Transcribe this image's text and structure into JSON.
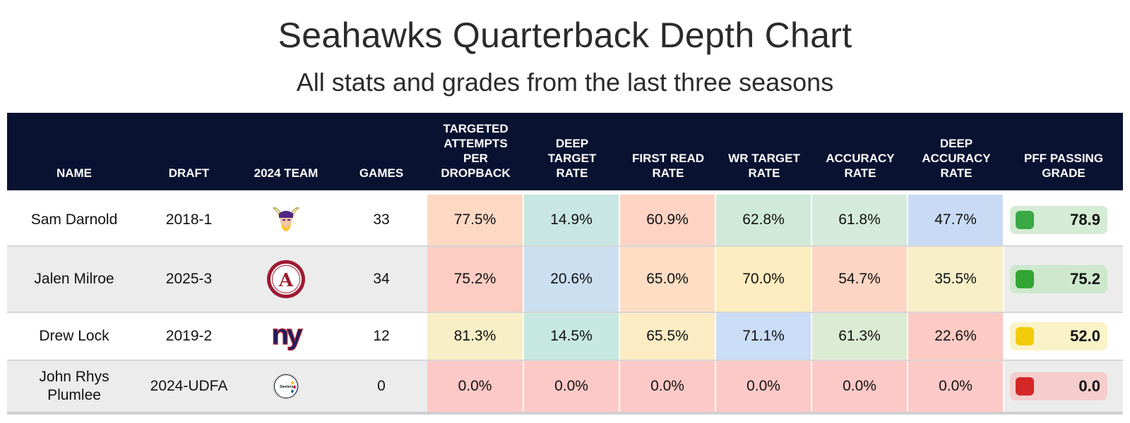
{
  "title": "Seahawks Quarterback Depth Chart",
  "subtitle": "All stats and grades from the last three seasons",
  "columns": {
    "name": "NAME",
    "draft": "DRAFT",
    "team": "2024 TEAM",
    "games": "GAMES",
    "tapd_1": "TARGETED",
    "tapd_2": "ATTEMPTS",
    "tapd_3": "PER",
    "tapd_4": "DROPBACK",
    "dtr_1": "DEEP",
    "dtr_2": "TARGET",
    "dtr_3": "RATE",
    "frr_1": "FIRST READ",
    "frr_2": "RATE",
    "wr_1": "WR TARGET",
    "wr_2": "RATE",
    "acc_1": "ACCURACY",
    "acc_2": "RATE",
    "dacc_1": "DEEP",
    "dacc_2": "ACCURACY",
    "dacc_3": "RATE",
    "pff_1": "PFF PASSING",
    "pff_2": "GRADE"
  },
  "chart_data": {
    "type": "table",
    "title": "Seahawks Quarterback Depth Chart",
    "subtitle": "All stats and grades from the last three seasons",
    "rows": [
      {
        "name_1": "Sam Darnold",
        "name_2": "",
        "draft": "2018-1",
        "team_logo": "minnesota-vikings-logo",
        "games": "33",
        "tapd": "77.5%",
        "dtr": "14.9%",
        "frr": "60.9%",
        "wr": "62.8%",
        "acc": "61.8%",
        "dacc": "47.7%",
        "pff": "78.9",
        "colors": [
          "#fdd9c4",
          "#c8e6e2",
          "#fdd3c4",
          "#cfead9",
          "#d5eadb",
          "#c9dbf4"
        ],
        "pff_bg": "#d4ecd4",
        "pff_dot": "#3aa845"
      },
      {
        "name_1": "Jalen Milroe",
        "name_2": "",
        "draft": "2025-3",
        "team_logo": "alabama-crimson-tide-logo",
        "games": "34",
        "tapd": "75.2%",
        "dtr": "20.6%",
        "frr": "65.0%",
        "wr": "70.0%",
        "acc": "54.7%",
        "dacc": "35.5%",
        "pff": "75.2",
        "colors": [
          "#fdcdc4",
          "#cbdff0",
          "#fdddc4",
          "#fdedc0",
          "#fdd5c4",
          "#f8efc9"
        ],
        "pff_bg": "#cde8cd",
        "pff_dot": "#33a532"
      },
      {
        "name_1": "Drew Lock",
        "name_2": "",
        "draft": "2019-2",
        "team_logo": "new-york-giants-logo",
        "games": "12",
        "tapd": "81.3%",
        "dtr": "14.5%",
        "frr": "65.5%",
        "wr": "71.1%",
        "acc": "61.3%",
        "dacc": "22.6%",
        "pff": "52.0",
        "colors": [
          "#f9efc6",
          "#c6e8e1",
          "#fdebc4",
          "#cbdcf6",
          "#dcecd4",
          "#fdcac4"
        ],
        "pff_bg": "#fbf3c8",
        "pff_dot": "#f2cc0a"
      },
      {
        "name_1": "John Rhys",
        "name_2": "Plumlee",
        "draft": "2024-UDFA",
        "team_logo": "pittsburgh-steelers-logo",
        "games": "0",
        "tapd": "0.0%",
        "dtr": "0.0%",
        "frr": "0.0%",
        "wr": "0.0%",
        "acc": "0.0%",
        "dacc": "0.0%",
        "pff": "0.0",
        "colors": [
          "#fdc9c6",
          "#fdc9c6",
          "#fdc9c6",
          "#fdc9c6",
          "#fdc9c6",
          "#fdc9c6"
        ],
        "pff_bg": "#f5cdcd",
        "pff_dot": "#d42727"
      }
    ]
  }
}
